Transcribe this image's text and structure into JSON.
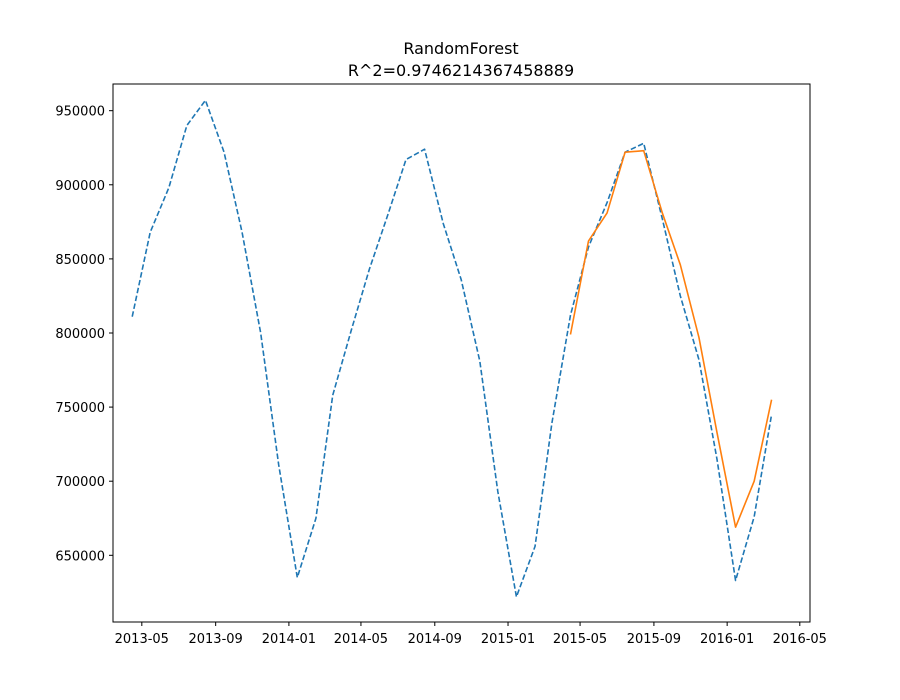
{
  "chart_data": {
    "type": "line",
    "title": "RandomForest",
    "subtitle": "R^2=0.9746214367458889",
    "xlabel": "",
    "ylabel": "",
    "xlim": [
      "2013-03-14",
      "2016-05-18"
    ],
    "ylim": [
      605000,
      968000
    ],
    "x_tick_labels": [
      "2013-05",
      "2013-09",
      "2014-01",
      "2014-05",
      "2014-09",
      "2015-01",
      "2015-05",
      "2015-09",
      "2016-01",
      "2016-05"
    ],
    "x_ticks": [
      "2013-05-01",
      "2013-09-01",
      "2014-01-01",
      "2014-05-01",
      "2014-09-01",
      "2015-01-01",
      "2015-05-01",
      "2015-09-01",
      "2016-01-01",
      "2016-05-01"
    ],
    "y_ticks": [
      650000,
      700000,
      750000,
      800000,
      850000,
      900000,
      950000
    ],
    "y_tick_labels": [
      "650000",
      "700000",
      "750000",
      "800000",
      "850000",
      "900000",
      "950000"
    ],
    "grid": false,
    "series": [
      {
        "style": "dashed",
        "color": "#1f77b4",
        "x": [
          "2013-04-15",
          "2013-05-15",
          "2013-06-15",
          "2013-07-15",
          "2013-08-15",
          "2013-09-15",
          "2013-10-15",
          "2013-11-15",
          "2013-12-15",
          "2014-01-15",
          "2014-02-15",
          "2014-03-15",
          "2014-04-15",
          "2014-05-15",
          "2014-06-15",
          "2014-07-15",
          "2014-08-15",
          "2014-09-15",
          "2014-10-15",
          "2014-11-15",
          "2014-12-15",
          "2015-01-15",
          "2015-02-15",
          "2015-03-15",
          "2015-04-15",
          "2015-05-15",
          "2015-06-15",
          "2015-07-15",
          "2015-08-15",
          "2015-09-15",
          "2015-10-15",
          "2015-11-15",
          "2015-12-15",
          "2016-01-15",
          "2016-02-15",
          "2016-03-15"
        ],
        "y": [
          811000,
          868000,
          898000,
          940000,
          957000,
          922000,
          868000,
          800000,
          711000,
          635000,
          675000,
          758000,
          802000,
          843000,
          880000,
          917000,
          924000,
          874000,
          836000,
          781000,
          693000,
          622000,
          656000,
          739000,
          812000,
          858000,
          888000,
          922000,
          928000,
          877000,
          825000,
          782000,
          715000,
          633000,
          676000,
          745000
        ]
      },
      {
        "style": "solid",
        "color": "#ff7f0e",
        "x": [
          "2015-04-15",
          "2015-05-15",
          "2015-06-15",
          "2015-07-15",
          "2015-08-15",
          "2015-09-15",
          "2015-10-15",
          "2015-11-15",
          "2015-12-15",
          "2016-01-15",
          "2016-02-15",
          "2016-03-15"
        ],
        "y": [
          799000,
          862000,
          881000,
          922000,
          923000,
          881000,
          846000,
          797000,
          733000,
          669000,
          700000,
          755000
        ]
      }
    ]
  }
}
